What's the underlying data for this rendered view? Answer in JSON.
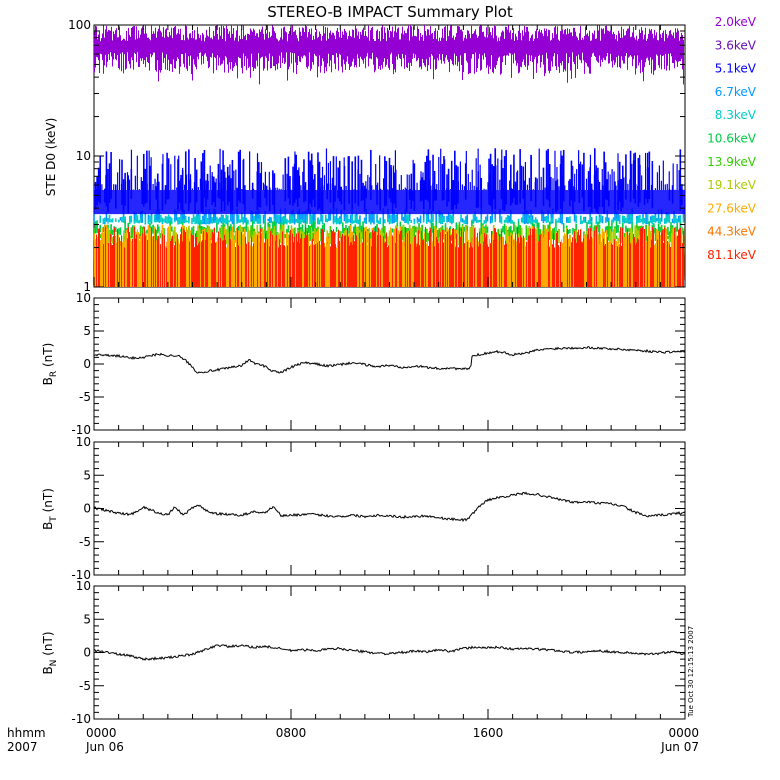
{
  "chart_data": [
    {
      "type": "line",
      "title": "STEREO-B IMPACT Summary Plot",
      "ylabel": "STE D0 (keV)",
      "yscale": "log",
      "ylim": [
        1,
        100
      ],
      "ytick_labels": [
        "1",
        "10",
        "100"
      ],
      "xlim": [
        "2007-06-06 00:00",
        "2007-06-07 00:00"
      ],
      "legend_position": "right",
      "series": [
        {
          "name": "2.0keV",
          "color": "#9400d3",
          "band": [
            40,
            100
          ]
        },
        {
          "name": "3.6keV",
          "color": "#6a0dad",
          "band": [
            35,
            90
          ]
        },
        {
          "name": "5.1keV",
          "color": "#0000ff",
          "band": [
            3.6,
            11.5
          ]
        },
        {
          "name": "6.7keV",
          "color": "#0099ff",
          "band": [
            3.0,
            4.0
          ]
        },
        {
          "name": "8.3keV",
          "color": "#00cccc",
          "band": [
            3.0,
            3.6
          ]
        },
        {
          "name": "10.6keV",
          "color": "#00cc44",
          "band": [
            2.5,
            3.2
          ]
        },
        {
          "name": "13.9keV",
          "color": "#33cc00",
          "band": [
            2.2,
            3.0
          ]
        },
        {
          "name": "19.1keV",
          "color": "#aacc00",
          "band": [
            2.0,
            3.0
          ]
        },
        {
          "name": "27.6keV",
          "color": "#ffaa00",
          "band": [
            1.0,
            3.0
          ]
        },
        {
          "name": "44.3keV",
          "color": "#ff7700",
          "band": [
            1.0,
            2.5
          ]
        },
        {
          "name": "81.1keV",
          "color": "#ff2200",
          "band": [
            1.0,
            2.0
          ]
        }
      ]
    },
    {
      "type": "line",
      "ylabel_main": "B",
      "ylabel_sub": "R",
      "ylabel_unit": " (nT)",
      "ylim": [
        -10,
        10
      ],
      "ytick_labels": [
        "-10",
        "-5",
        "0",
        "5",
        "10"
      ],
      "points": [
        [
          0,
          1.4
        ],
        [
          1,
          1.2
        ],
        [
          1.5,
          0.9
        ],
        [
          2,
          1.0
        ],
        [
          2.6,
          1.5
        ],
        [
          3,
          1.3
        ],
        [
          3.4,
          1.3
        ],
        [
          3.8,
          0.3
        ],
        [
          4.2,
          -1.3
        ],
        [
          4.8,
          -1.0
        ],
        [
          5.5,
          -0.6
        ],
        [
          6.0,
          -0.2
        ],
        [
          6.3,
          0.6
        ],
        [
          6.6,
          0.0
        ],
        [
          7.0,
          -0.4
        ],
        [
          7.2,
          -1.0
        ],
        [
          7.6,
          -1.3
        ],
        [
          8.0,
          -0.5
        ],
        [
          8.5,
          0.2
        ],
        [
          9,
          0.0
        ],
        [
          9.5,
          -0.3
        ],
        [
          10,
          -0.1
        ],
        [
          10.5,
          0.2
        ],
        [
          11,
          -0.1
        ],
        [
          11.5,
          -0.4
        ],
        [
          12,
          -0.2
        ],
        [
          12.5,
          -0.5
        ],
        [
          13,
          -0.3
        ],
        [
          13.5,
          -0.5
        ],
        [
          14,
          -0.7
        ],
        [
          14.5,
          -0.6
        ],
        [
          15,
          -0.8
        ],
        [
          15.3,
          -0.6
        ],
        [
          15.35,
          1.2
        ],
        [
          16,
          1.7
        ],
        [
          16.5,
          1.9
        ],
        [
          17,
          1.4
        ],
        [
          17.5,
          1.6
        ],
        [
          18,
          2.1
        ],
        [
          18.5,
          2.3
        ],
        [
          19,
          2.4
        ],
        [
          20,
          2.5
        ],
        [
          21,
          2.3
        ],
        [
          22,
          2.1
        ],
        [
          23,
          1.8
        ],
        [
          24,
          1.9
        ]
      ]
    },
    {
      "type": "line",
      "ylabel_main": "B",
      "ylabel_sub": "T",
      "ylabel_unit": " (nT)",
      "ylim": [
        -10,
        10
      ],
      "ytick_labels": [
        "-10",
        "-5",
        "0",
        "5",
        "10"
      ],
      "points": [
        [
          0,
          0.1
        ],
        [
          0.5,
          -0.3
        ],
        [
          1,
          -0.7
        ],
        [
          1.5,
          -0.9
        ],
        [
          2,
          0.2
        ],
        [
          2.5,
          -0.5
        ],
        [
          3,
          -1.0
        ],
        [
          3.3,
          0.3
        ],
        [
          3.6,
          -1.0
        ],
        [
          4.2,
          0.6
        ],
        [
          4.6,
          -0.4
        ],
        [
          5,
          -0.8
        ],
        [
          5.5,
          -0.9
        ],
        [
          6,
          -1.0
        ],
        [
          6.5,
          -0.5
        ],
        [
          7,
          -0.6
        ],
        [
          7.3,
          0.4
        ],
        [
          7.6,
          -1.1
        ],
        [
          8,
          -1.0
        ],
        [
          8.5,
          -0.9
        ],
        [
          9,
          -0.9
        ],
        [
          9.5,
          -1.1
        ],
        [
          10,
          -1.2
        ],
        [
          10.5,
          -1.0
        ],
        [
          11,
          -1.2
        ],
        [
          11.5,
          -1.0
        ],
        [
          12,
          -1.1
        ],
        [
          12.5,
          -1.3
        ],
        [
          13,
          -1.2
        ],
        [
          13.5,
          -1.1
        ],
        [
          14,
          -1.4
        ],
        [
          14.5,
          -1.6
        ],
        [
          15,
          -1.7
        ],
        [
          15.2,
          -1.6
        ],
        [
          15.6,
          0.2
        ],
        [
          16,
          1.3
        ],
        [
          16.5,
          1.7
        ],
        [
          17,
          2.0
        ],
        [
          17.5,
          2.3
        ],
        [
          18,
          2.1
        ],
        [
          18.5,
          1.7
        ],
        [
          19,
          1.3
        ],
        [
          19.5,
          0.9
        ],
        [
          20,
          1.0
        ],
        [
          20.5,
          0.8
        ],
        [
          21,
          0.7
        ],
        [
          21.5,
          0.3
        ],
        [
          22,
          -0.6
        ],
        [
          22.5,
          -1.2
        ],
        [
          23,
          -1.0
        ],
        [
          23.5,
          -0.8
        ],
        [
          24,
          -0.6
        ]
      ]
    },
    {
      "type": "line",
      "ylabel_main": "B",
      "ylabel_sub": "N",
      "ylabel_unit": " (nT)",
      "ylim": [
        -10,
        10
      ],
      "ytick_labels": [
        "-10",
        "-5",
        "0",
        "5",
        "10"
      ],
      "points": [
        [
          0,
          0.3
        ],
        [
          0.5,
          0.1
        ],
        [
          1,
          -0.3
        ],
        [
          1.5,
          -0.5
        ],
        [
          2,
          -1.0
        ],
        [
          2.5,
          -0.9
        ],
        [
          3,
          -0.8
        ],
        [
          3.5,
          -0.5
        ],
        [
          4,
          -0.3
        ],
        [
          4.5,
          0.4
        ],
        [
          5,
          1.1
        ],
        [
          5.5,
          0.9
        ],
        [
          6,
          1.0
        ],
        [
          6.5,
          0.8
        ],
        [
          7,
          0.9
        ],
        [
          7.5,
          0.6
        ],
        [
          8,
          0.3
        ],
        [
          8.5,
          0.4
        ],
        [
          9,
          0.3
        ],
        [
          9.5,
          0.5
        ],
        [
          10,
          0.6
        ],
        [
          10.5,
          0.3
        ],
        [
          11,
          0.1
        ],
        [
          11.5,
          -0.1
        ],
        [
          12,
          -0.2
        ],
        [
          12.5,
          0.0
        ],
        [
          13,
          0.2
        ],
        [
          13.5,
          0.1
        ],
        [
          14,
          0.4
        ],
        [
          14.5,
          0.2
        ],
        [
          15,
          0.6
        ],
        [
          15.5,
          0.8
        ],
        [
          16,
          0.7
        ],
        [
          16.5,
          0.8
        ],
        [
          17,
          0.5
        ],
        [
          17.5,
          0.6
        ],
        [
          18,
          0.5
        ],
        [
          18.5,
          0.4
        ],
        [
          19,
          0.2
        ],
        [
          19.5,
          0.0
        ],
        [
          20,
          0.1
        ],
        [
          20.5,
          0.3
        ],
        [
          21,
          0.1
        ],
        [
          21.5,
          0.0
        ],
        [
          22,
          -0.1
        ],
        [
          22.5,
          -0.3
        ],
        [
          23,
          -0.1
        ],
        [
          23.5,
          0.2
        ],
        [
          24,
          -0.3
        ]
      ]
    }
  ],
  "x_axis": {
    "corner_line1": "hhmm",
    "corner_line2": "2007",
    "ticks": [
      {
        "time": "0000",
        "date": "Jun 06",
        "hour": 0
      },
      {
        "time": "0800",
        "date": "",
        "hour": 8
      },
      {
        "time": "1600",
        "date": "",
        "hour": 16
      },
      {
        "time": "0000",
        "date": "Jun 07",
        "hour": 24
      }
    ]
  },
  "timestamp": "Tue Oct 30 12:15:13 2007"
}
